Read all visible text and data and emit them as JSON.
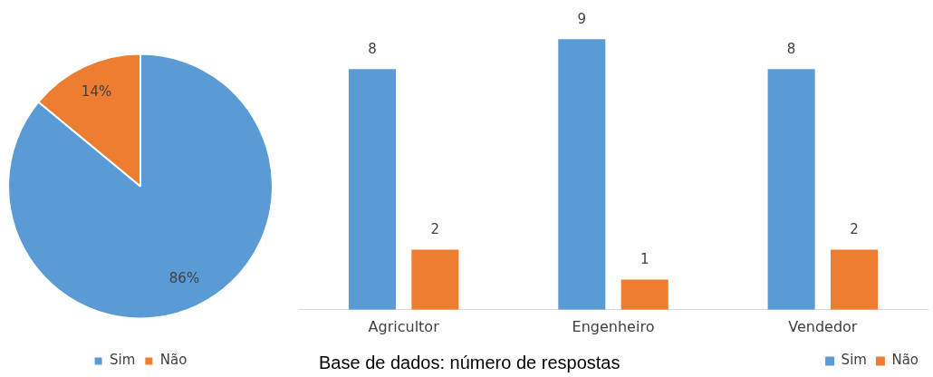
{
  "chart_data": [
    {
      "type": "pie",
      "categories": [
        "Sim",
        "Não"
      ],
      "values": [
        86,
        14
      ],
      "colors": [
        "#5b9bd5",
        "#ed7d31"
      ],
      "value_labels": [
        "86%",
        "14%"
      ],
      "legend": "bottom"
    },
    {
      "type": "bar",
      "categories": [
        "Agricultor",
        "Engenheiro",
        "Vendedor"
      ],
      "series": [
        {
          "name": "Sim",
          "color": "#5b9bd5",
          "values": [
            8,
            9,
            8
          ]
        },
        {
          "name": "Não",
          "color": "#ed7d31",
          "values": [
            2,
            1,
            2
          ]
        }
      ],
      "data_labels": true,
      "legend": "bottom right",
      "annotations": [
        "Base de dados: número de respostas"
      ]
    }
  ]
}
